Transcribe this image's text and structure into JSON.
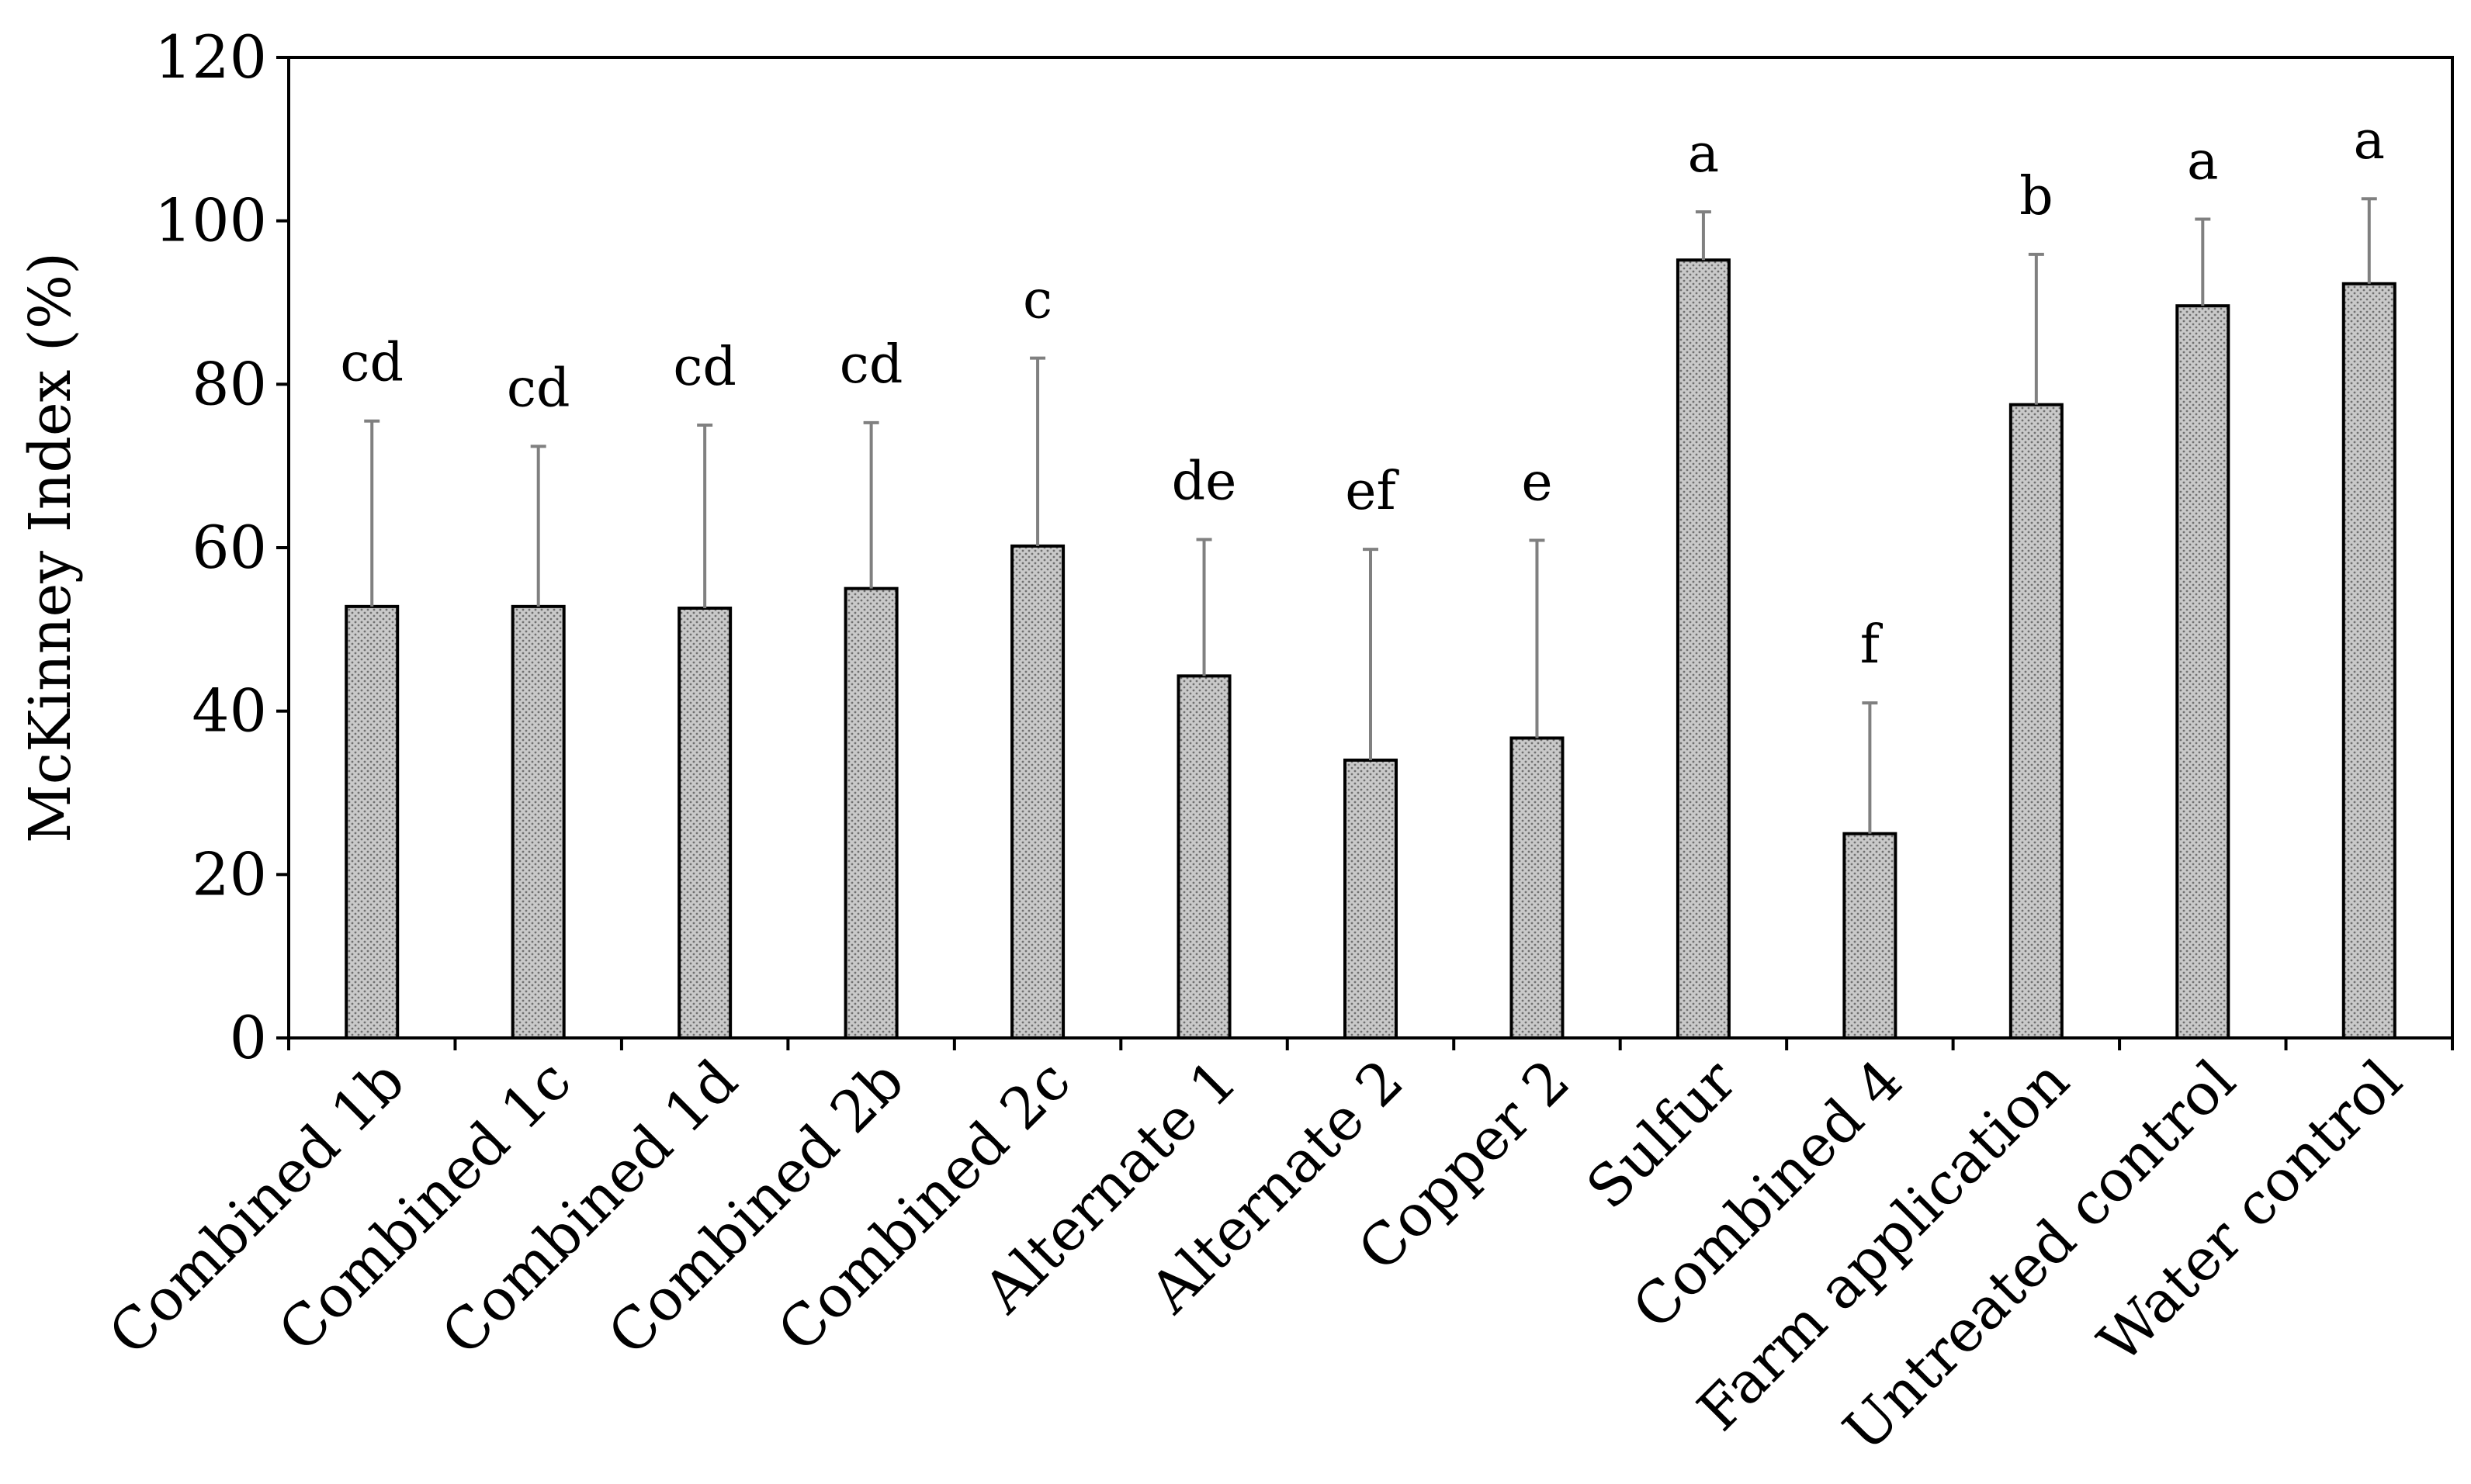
{
  "chart_data": {
    "type": "bar",
    "title": "",
    "xlabel": "",
    "ylabel": "McKinney Index (%)",
    "ylim": [
      0,
      120
    ],
    "yticks": [
      0,
      20,
      40,
      60,
      80,
      100,
      120
    ],
    "grid": false,
    "legend": "none",
    "categories": [
      "Combined 1b",
      "Combined 1c",
      "Combined 1d",
      "Combined 2b",
      "Combined 2c",
      "Alternate 1",
      "Alternate 2",
      "Copper 2",
      "Sulfur",
      "Combined 4",
      "Farm application",
      "Untreated control",
      "Water control"
    ],
    "values": [
      52.8,
      52.8,
      52.6,
      55.0,
      60.2,
      44.3,
      34.0,
      36.7,
      95.2,
      25.0,
      77.5,
      89.6,
      92.3
    ],
    "errors": [
      22.7,
      19.6,
      22.4,
      20.3,
      23.0,
      16.7,
      25.8,
      24.2,
      5.9,
      16.0,
      18.4,
      10.6,
      10.4
    ],
    "significance": [
      "cd",
      "cd",
      "cd",
      "cd",
      "c",
      "de",
      "ef",
      "e",
      "a",
      "f",
      "b",
      "a",
      "a"
    ],
    "colors": {
      "bar_fill": "#c9c9c9",
      "bar_dot": "#707070",
      "bar_stroke": "#000000",
      "error_bar": "#808080",
      "axis": "#000000",
      "frame": "#000000"
    }
  }
}
